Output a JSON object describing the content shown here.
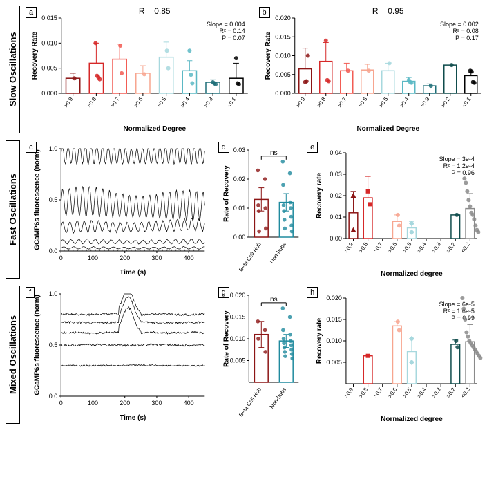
{
  "rows": {
    "slow": {
      "label": "Slow Oscillations"
    },
    "fast": {
      "label": "Fast Oscillations"
    },
    "mixed": {
      "label": "Mixed Oscillations"
    }
  },
  "palette": {
    "bins": [
      {
        "label": ">0.9",
        "color": "#8c1515"
      },
      {
        "label": ">0.8",
        "color": "#d62828"
      },
      {
        "label": ">0.7",
        "color": "#f25c54"
      },
      {
        "label": ">0.6",
        "color": "#f7a58f"
      },
      {
        "label": ">0.5",
        "color": "#a7d8de"
      },
      {
        "label": ">0.4",
        "color": "#5bb8c4"
      },
      {
        "label": ">0.3",
        "color": "#1f6f78"
      },
      {
        "label": ">0.2",
        "color": "#0f4c4c"
      },
      {
        "label": "<0.1",
        "color": "#000000"
      }
    ],
    "hub": "#8c1515",
    "nonhub": "#1f8a9e"
  },
  "a": {
    "letter": "a",
    "title": "R_th = 0.85",
    "ylabel": "Recovery Rate",
    "xlabel": "Normalized Degree",
    "ylim": [
      0,
      0.015
    ],
    "yticks": [
      0.0,
      0.005,
      0.01,
      0.015
    ],
    "stats": [
      "Slope = 0.004",
      "R² = 0.14",
      "P = 0.07"
    ],
    "bars": [
      {
        "bin": ">0.9",
        "h": 0.003,
        "err": 0.001,
        "pts": [
          0.003
        ]
      },
      {
        "bin": ">0.8",
        "h": 0.006,
        "err": 0.004,
        "pts": [
          0.01,
          0.0035,
          0.0032,
          0.0028
        ]
      },
      {
        "bin": ">0.7",
        "h": 0.0068,
        "err": 0.003,
        "pts": [
          0.0095,
          0.004
        ]
      },
      {
        "bin": ">0.6",
        "h": 0.004,
        "err": 0.0015,
        "pts": [
          0.0038
        ]
      },
      {
        "bin": ">0.5",
        "h": 0.0072,
        "err": 0.003,
        "pts": [
          0.0085,
          0.005
        ]
      },
      {
        "bin": ">0.4",
        "h": 0.0045,
        "err": 0.002,
        "pts": [
          0.0085,
          0.0037,
          0.002
        ]
      },
      {
        "bin": ">0.3",
        "h": 0.0022,
        "err": 0.0005,
        "pts": [
          0.0022,
          0.002,
          0.0018
        ]
      },
      {
        "bin": "<0.1",
        "h": 0.003,
        "err": 0.003,
        "pts": [
          0.007,
          0.002,
          0.0018
        ]
      }
    ]
  },
  "b": {
    "letter": "b",
    "title": "R_th = 0.95",
    "ylabel": "Recovery Rate",
    "xlabel": "Normalized Degree",
    "ylim": [
      0,
      0.02
    ],
    "yticks": [
      0.0,
      0.005,
      0.01,
      0.015,
      0.02
    ],
    "stats": [
      "Slope = 0.002",
      "R² = 0.08",
      "P = 0.17"
    ],
    "bars": [
      {
        "bin": ">0.9",
        "h": 0.0065,
        "err": 0.0055,
        "pts": [
          0.003,
          0.0032,
          0.01
        ]
      },
      {
        "bin": ">0.8",
        "h": 0.0085,
        "err": 0.005,
        "pts": [
          0.014,
          0.0035,
          0.0032
        ]
      },
      {
        "bin": ">0.7",
        "h": 0.006,
        "err": 0.002,
        "pts": [
          0.006
        ]
      },
      {
        "bin": ">0.6",
        "h": 0.0062,
        "err": 0.0015,
        "pts": [
          0.006
        ]
      },
      {
        "bin": ">0.5",
        "h": 0.006,
        "err": 0.002,
        "pts": [
          0.008
        ]
      },
      {
        "bin": ">0.4",
        "h": 0.0032,
        "err": 0.001,
        "pts": [
          0.0035,
          0.003,
          0.0028
        ]
      },
      {
        "bin": ">0.3",
        "h": 0.002,
        "err": 0.0005,
        "pts": [
          0.002
        ]
      },
      {
        "bin": ">0.2",
        "h": 0.0075,
        "err": 0.0,
        "pts": [
          0.0075
        ]
      },
      {
        "bin": "<0.1",
        "h": 0.0047,
        "err": 0.0008,
        "pts": [
          0.006,
          0.0058,
          0.003,
          0.0028
        ]
      }
    ]
  },
  "c": {
    "letter": "c",
    "ylabel": "GCaMP6s fluorescence (norm)",
    "xlabel": "Time (s)",
    "xlim": [
      0,
      450
    ],
    "xticks": [
      0,
      100,
      200,
      300,
      400
    ],
    "ylim": [
      0,
      1.0
    ],
    "yticks": [
      0.0,
      0.5,
      1.0
    ]
  },
  "d": {
    "letter": "d",
    "ylabel": "Rate of Recovery",
    "ylim": [
      0,
      0.03
    ],
    "yticks": [
      0.0,
      0.01,
      0.02,
      0.03
    ],
    "categories": [
      "Beta Cell Hub",
      "Non-hubs"
    ],
    "ns": "ns",
    "bars": [
      {
        "h": 0.013,
        "err": 0.004,
        "pts": [
          0.023,
          0.02,
          0.011,
          0.01,
          0.009,
          0.003,
          0.002
        ],
        "color": "#8c1515"
      },
      {
        "h": 0.012,
        "err": 0.003,
        "pts": [
          0.026,
          0.022,
          0.018,
          0.012,
          0.011,
          0.01,
          0.009,
          0.007,
          0.006,
          0.004,
          0.003,
          0.002
        ],
        "color": "#1f8a9e"
      }
    ]
  },
  "e": {
    "letter": "e",
    "ylabel": "Recovery rate",
    "xlabel": "Normalized degree",
    "ylim": [
      0,
      0.04
    ],
    "yticks": [
      0.0,
      0.01,
      0.02,
      0.03,
      0.04
    ],
    "stats": [
      "Slope = 3e-4",
      "R² = 1.2e-4",
      "P = 0.96"
    ],
    "bars": [
      {
        "bin": ">0.9",
        "h": 0.012,
        "err": 0.01,
        "pts": [
          0.02,
          0.004
        ],
        "marker": "tri"
      },
      {
        "bin": ">0.8",
        "h": 0.019,
        "err": 0.01,
        "pts": [
          0.022,
          0.016
        ],
        "marker": "sq"
      },
      {
        "bin": ">0.7",
        "h": 0,
        "err": 0,
        "pts": []
      },
      {
        "bin": ">0.6",
        "h": 0.008,
        "err": 0.003,
        "pts": [
          0.011,
          0.006
        ],
        "marker": "dot"
      },
      {
        "bin": ">0.5",
        "h": 0.005,
        "err": 0.003,
        "pts": [
          0.007,
          0.003
        ],
        "marker": "diam"
      },
      {
        "bin": ">0.4",
        "h": 0,
        "err": 0,
        "pts": []
      },
      {
        "bin": ">0.3",
        "h": 0,
        "err": 0,
        "pts": []
      },
      {
        "bin": ">0.2",
        "h": 0.011,
        "err": 0.0,
        "pts": [
          0.011
        ],
        "marker": "dot"
      },
      {
        "bin": "<0.2",
        "h": 0.014,
        "err": 0.007,
        "pts": [
          0.028,
          0.026,
          0.022,
          0.018,
          0.015,
          0.012,
          0.011,
          0.009,
          0.006,
          0.004,
          0.003
        ],
        "marker": "dot",
        "color": "#8a8a8a"
      }
    ]
  },
  "f": {
    "letter": "f",
    "ylabel": "GCaMP6s fluorescence (norm)",
    "xlabel": "Time (s)",
    "xlim": [
      0,
      450
    ],
    "xticks": [
      0,
      100,
      200,
      300,
      400
    ],
    "ylim": [
      0,
      1.0
    ],
    "yticks": [
      0.0,
      0.5,
      1.0
    ]
  },
  "g": {
    "letter": "g",
    "ylabel": "Rate of Recovery",
    "ylim": [
      0,
      0.02
    ],
    "yticks": [
      0.005,
      0.01,
      0.015,
      0.02
    ],
    "categories": [
      "Beta Cell Hub",
      "Non-hubs"
    ],
    "ns": "ns",
    "bars": [
      {
        "h": 0.011,
        "err": 0.003,
        "pts": [
          0.014,
          0.012,
          0.01,
          0.007
        ],
        "color": "#8c1515"
      },
      {
        "h": 0.0095,
        "err": 0.0015,
        "pts": [
          0.017,
          0.015,
          0.012,
          0.011,
          0.01,
          0.0095,
          0.009,
          0.0085,
          0.008,
          0.0075,
          0.007,
          0.0065,
          0.006,
          0.0055
        ],
        "color": "#1f8a9e"
      }
    ]
  },
  "h": {
    "letter": "h",
    "ylabel": "Recovery rate",
    "xlabel": "Normalized degree",
    "ylim": [
      0,
      0.02
    ],
    "yticks": [
      0.005,
      0.01,
      0.015,
      0.02
    ],
    "stats": [
      "Slope = 6e-5",
      "R² = 1.6e-5",
      "P = 0.99"
    ],
    "bars": [
      {
        "bin": ">0.9",
        "h": 0,
        "err": 0,
        "pts": []
      },
      {
        "bin": ">0.8",
        "h": 0.0065,
        "err": 0,
        "pts": [
          0.0065
        ],
        "marker": "sq"
      },
      {
        "bin": ">0.7",
        "h": 0,
        "err": 0,
        "pts": []
      },
      {
        "bin": ">0.6",
        "h": 0.0135,
        "err": 0.001,
        "pts": [
          0.0145,
          0.0125
        ],
        "marker": "dot"
      },
      {
        "bin": ">0.5",
        "h": 0.0075,
        "err": 0.003,
        "pts": [
          0.0105,
          0.005
        ],
        "marker": "diam"
      },
      {
        "bin": ">0.4",
        "h": 0,
        "err": 0,
        "pts": []
      },
      {
        "bin": ">0.3",
        "h": 0,
        "err": 0,
        "pts": []
      },
      {
        "bin": ">0.2",
        "h": 0.0092,
        "err": 0.001,
        "pts": [
          0.01,
          0.0085
        ],
        "marker": "dot"
      },
      {
        "bin": "<0.2",
        "h": 0.0098,
        "err": 0.004,
        "pts": [
          0.02,
          0.0175,
          0.015,
          0.012,
          0.011,
          0.01,
          0.0095,
          0.009,
          0.0085,
          0.008,
          0.0075,
          0.007,
          0.0065,
          0.006
        ],
        "marker": "dot",
        "color": "#8a8a8a"
      }
    ]
  }
}
